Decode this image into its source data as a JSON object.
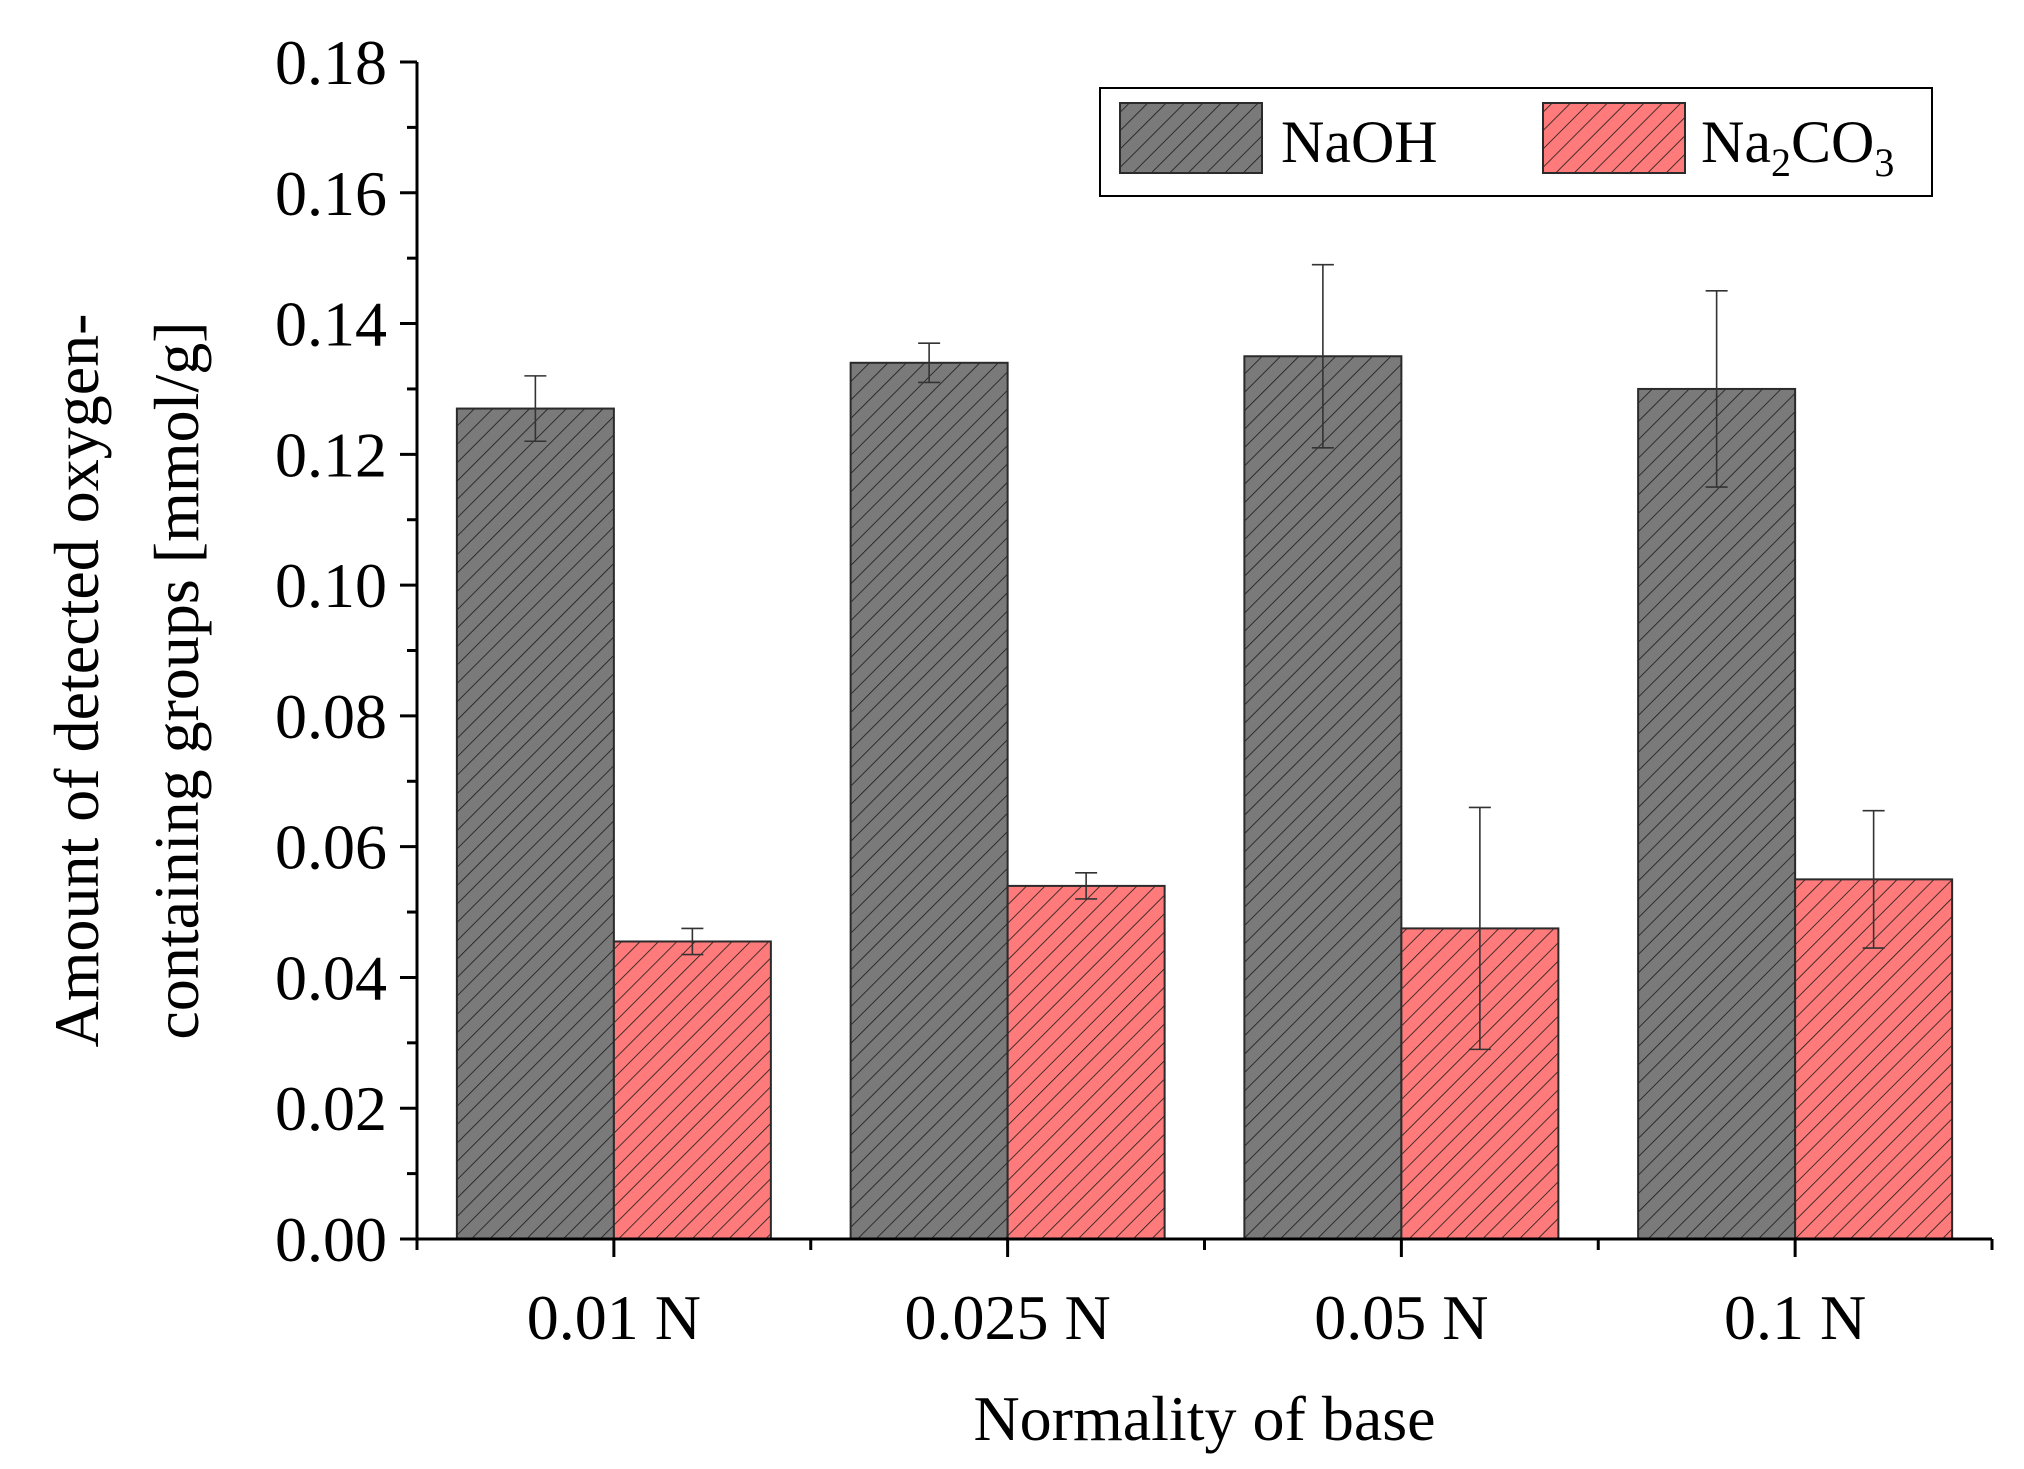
{
  "chart_data": {
    "type": "bar",
    "title": "",
    "xlabel": "Normality of base",
    "ylabel_lines": [
      "Amount of detected oxygen-",
      "containing groups [mmol/g]"
    ],
    "categories": [
      "0.01 N",
      "0.025 N",
      "0.05 N",
      "0.1 N"
    ],
    "ylim": [
      0,
      0.18
    ],
    "yticks": [
      "0.00",
      "0.02",
      "0.04",
      "0.06",
      "0.08",
      "0.10",
      "0.12",
      "0.14",
      "0.16",
      "0.18"
    ],
    "grid": false,
    "legend_position": "top-right",
    "series": [
      {
        "name": "NaOH",
        "legend_label": {
          "base": "NaOH",
          "parts": []
        },
        "color": "#7a7a7a",
        "values": [
          0.127,
          0.134,
          0.135,
          0.13
        ],
        "errors": [
          0.005,
          0.003,
          0.014,
          0.015
        ]
      },
      {
        "name": "Na2CO3",
        "legend_label": {
          "base": "Na",
          "parts": [
            {
              "sub": "2",
              "after": "CO"
            },
            {
              "sub": "3",
              "after": ""
            }
          ]
        },
        "color": "#ff7a7a",
        "values": [
          0.0455,
          0.054,
          0.0475,
          0.055
        ],
        "errors": [
          0.002,
          0.002,
          0.0185,
          0.0105
        ]
      }
    ]
  }
}
